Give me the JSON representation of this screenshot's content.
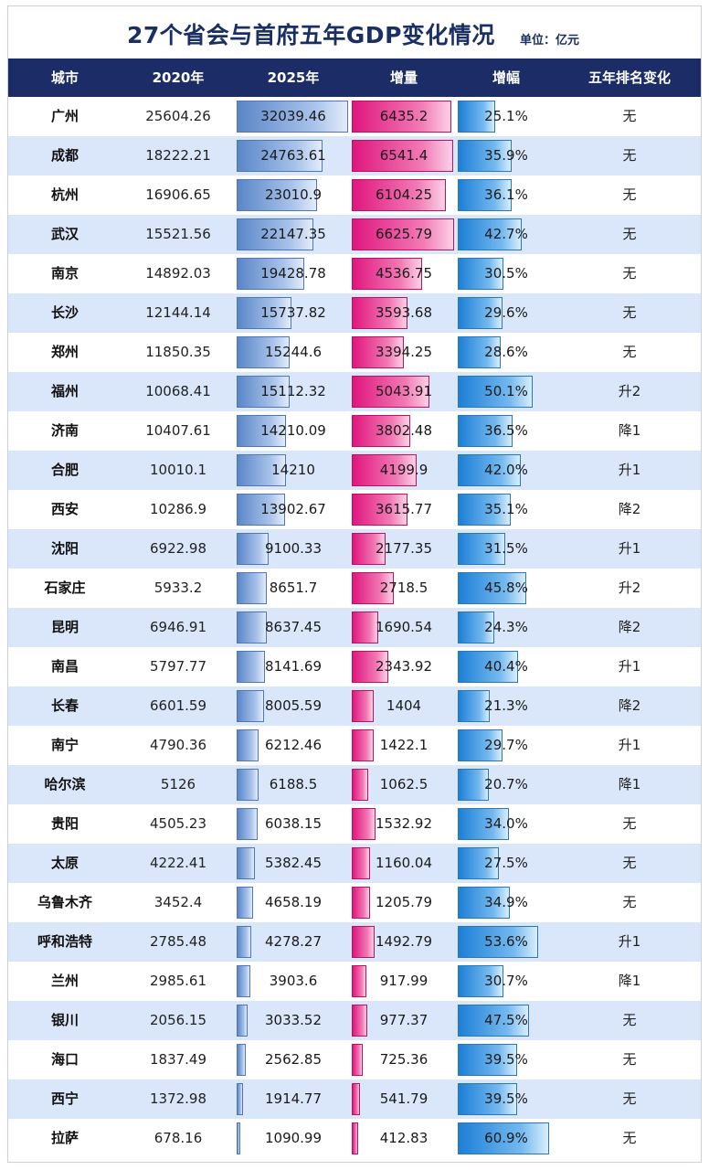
{
  "chart_data": {
    "type": "table",
    "title": "27个省会与首府五年GDP变化情况",
    "unit": "单位：亿元",
    "columns": [
      "城市",
      "2020年",
      "2025年",
      "增量",
      "增幅",
      "五年排名变化"
    ],
    "rows": [
      {
        "city": "广州",
        "y2020": "25604.26",
        "y2025": "32039.46",
        "inc": "6435.2",
        "pct": "25.1%",
        "rank": "无"
      },
      {
        "city": "成都",
        "y2020": "18222.21",
        "y2025": "24763.61",
        "inc": "6541.4",
        "pct": "35.9%",
        "rank": "无"
      },
      {
        "city": "杭州",
        "y2020": "16906.65",
        "y2025": "23010.9",
        "inc": "6104.25",
        "pct": "36.1%",
        "rank": "无"
      },
      {
        "city": "武汉",
        "y2020": "15521.56",
        "y2025": "22147.35",
        "inc": "6625.79",
        "pct": "42.7%",
        "rank": "无"
      },
      {
        "city": "南京",
        "y2020": "14892.03",
        "y2025": "19428.78",
        "inc": "4536.75",
        "pct": "30.5%",
        "rank": "无"
      },
      {
        "city": "长沙",
        "y2020": "12144.14",
        "y2025": "15737.82",
        "inc": "3593.68",
        "pct": "29.6%",
        "rank": "无"
      },
      {
        "city": "郑州",
        "y2020": "11850.35",
        "y2025": "15244.6",
        "inc": "3394.25",
        "pct": "28.6%",
        "rank": "无"
      },
      {
        "city": "福州",
        "y2020": "10068.41",
        "y2025": "15112.32",
        "inc": "5043.91",
        "pct": "50.1%",
        "rank": "升2"
      },
      {
        "city": "济南",
        "y2020": "10407.61",
        "y2025": "14210.09",
        "inc": "3802.48",
        "pct": "36.5%",
        "rank": "降1"
      },
      {
        "city": "合肥",
        "y2020": "10010.1",
        "y2025": "14210",
        "inc": "4199.9",
        "pct": "42.0%",
        "rank": "升1"
      },
      {
        "city": "西安",
        "y2020": "10286.9",
        "y2025": "13902.67",
        "inc": "3615.77",
        "pct": "35.1%",
        "rank": "降2"
      },
      {
        "city": "沈阳",
        "y2020": "6922.98",
        "y2025": "9100.33",
        "inc": "2177.35",
        "pct": "31.5%",
        "rank": "升1"
      },
      {
        "city": "石家庄",
        "y2020": "5933.2",
        "y2025": "8651.7",
        "inc": "2718.5",
        "pct": "45.8%",
        "rank": "升2"
      },
      {
        "city": "昆明",
        "y2020": "6946.91",
        "y2025": "8637.45",
        "inc": "1690.54",
        "pct": "24.3%",
        "rank": "降2"
      },
      {
        "city": "南昌",
        "y2020": "5797.77",
        "y2025": "8141.69",
        "inc": "2343.92",
        "pct": "40.4%",
        "rank": "升1"
      },
      {
        "city": "长春",
        "y2020": "6601.59",
        "y2025": "8005.59",
        "inc": "1404",
        "pct": "21.3%",
        "rank": "降2"
      },
      {
        "city": "南宁",
        "y2020": "4790.36",
        "y2025": "6212.46",
        "inc": "1422.1",
        "pct": "29.7%",
        "rank": "升1"
      },
      {
        "city": "哈尔滨",
        "y2020": "5126",
        "y2025": "6188.5",
        "inc": "1062.5",
        "pct": "20.7%",
        "rank": "降1"
      },
      {
        "city": "贵阳",
        "y2020": "4505.23",
        "y2025": "6038.15",
        "inc": "1532.92",
        "pct": "34.0%",
        "rank": "无"
      },
      {
        "city": "太原",
        "y2020": "4222.41",
        "y2025": "5382.45",
        "inc": "1160.04",
        "pct": "27.5%",
        "rank": "无"
      },
      {
        "city": "乌鲁木齐",
        "y2020": "3452.4",
        "y2025": "4658.19",
        "inc": "1205.79",
        "pct": "34.9%",
        "rank": "无"
      },
      {
        "city": "呼和浩特",
        "y2020": "2785.48",
        "y2025": "4278.27",
        "inc": "1492.79",
        "pct": "53.6%",
        "rank": "升1"
      },
      {
        "city": "兰州",
        "y2020": "2985.61",
        "y2025": "3903.6",
        "inc": "917.99",
        "pct": "30.7%",
        "rank": "降1"
      },
      {
        "city": "银川",
        "y2020": "2056.15",
        "y2025": "3033.52",
        "inc": "977.37",
        "pct": "47.5%",
        "rank": "无"
      },
      {
        "city": "海口",
        "y2020": "1837.49",
        "y2025": "2562.85",
        "inc": "725.36",
        "pct": "39.5%",
        "rank": "无"
      },
      {
        "city": "西宁",
        "y2020": "1372.98",
        "y2025": "1914.77",
        "inc": "541.79",
        "pct": "39.5%",
        "rank": "无"
      },
      {
        "city": "拉萨",
        "y2020": "678.16",
        "y2025": "1090.99",
        "inc": "412.83",
        "pct": "60.9%",
        "rank": "无"
      }
    ]
  },
  "colors": {
    "header_bg": "#1b2c66",
    "title": "#1a2f63",
    "row_alt": "#dae6fa",
    "bar_2025": "#5a86c8",
    "bar_increase": "#e0167e",
    "bar_growth": "#1d7fd6"
  }
}
